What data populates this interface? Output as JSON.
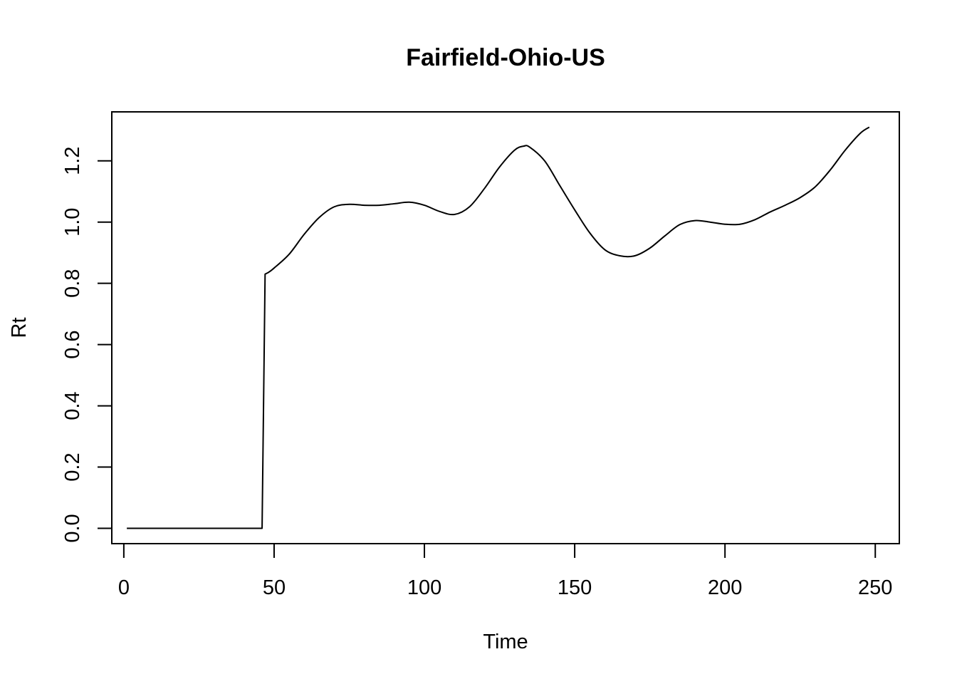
{
  "chart_data": {
    "type": "line",
    "title": "Fairfield-Ohio-US",
    "xlabel": "Time",
    "ylabel": "Rt",
    "xlim": [
      -4,
      258
    ],
    "ylim": [
      -0.05,
      1.36
    ],
    "xticks": [
      0,
      50,
      100,
      150,
      200,
      250
    ],
    "xtick_labels": [
      "0",
      "50",
      "100",
      "150",
      "200",
      "250"
    ],
    "yticks": [
      0.0,
      0.2,
      0.4,
      0.6,
      0.8,
      1.0,
      1.2
    ],
    "ytick_labels": [
      "0.0",
      "0.2",
      "0.4",
      "0.6",
      "0.8",
      "1.0",
      "1.2"
    ],
    "grid": false,
    "legend": "none",
    "series": [
      {
        "color": "#000000",
        "x": [
          1,
          46,
          47,
          48,
          50,
          55,
          60,
          65,
          70,
          75,
          80,
          85,
          90,
          95,
          100,
          105,
          110,
          115,
          120,
          125,
          130,
          133,
          135,
          140,
          145,
          150,
          155,
          160,
          165,
          170,
          175,
          180,
          185,
          190,
          195,
          200,
          205,
          210,
          215,
          220,
          225,
          230,
          235,
          240,
          245,
          248
        ],
        "y": [
          0.0,
          0.0,
          0.83,
          0.835,
          0.85,
          0.895,
          0.96,
          1.015,
          1.05,
          1.058,
          1.055,
          1.055,
          1.06,
          1.065,
          1.055,
          1.035,
          1.025,
          1.05,
          1.11,
          1.18,
          1.235,
          1.248,
          1.245,
          1.2,
          1.12,
          1.04,
          0.965,
          0.91,
          0.89,
          0.89,
          0.915,
          0.955,
          0.992,
          1.005,
          1.0,
          0.993,
          0.993,
          1.008,
          1.033,
          1.055,
          1.08,
          1.115,
          1.17,
          1.235,
          1.29,
          1.31
        ]
      }
    ]
  }
}
